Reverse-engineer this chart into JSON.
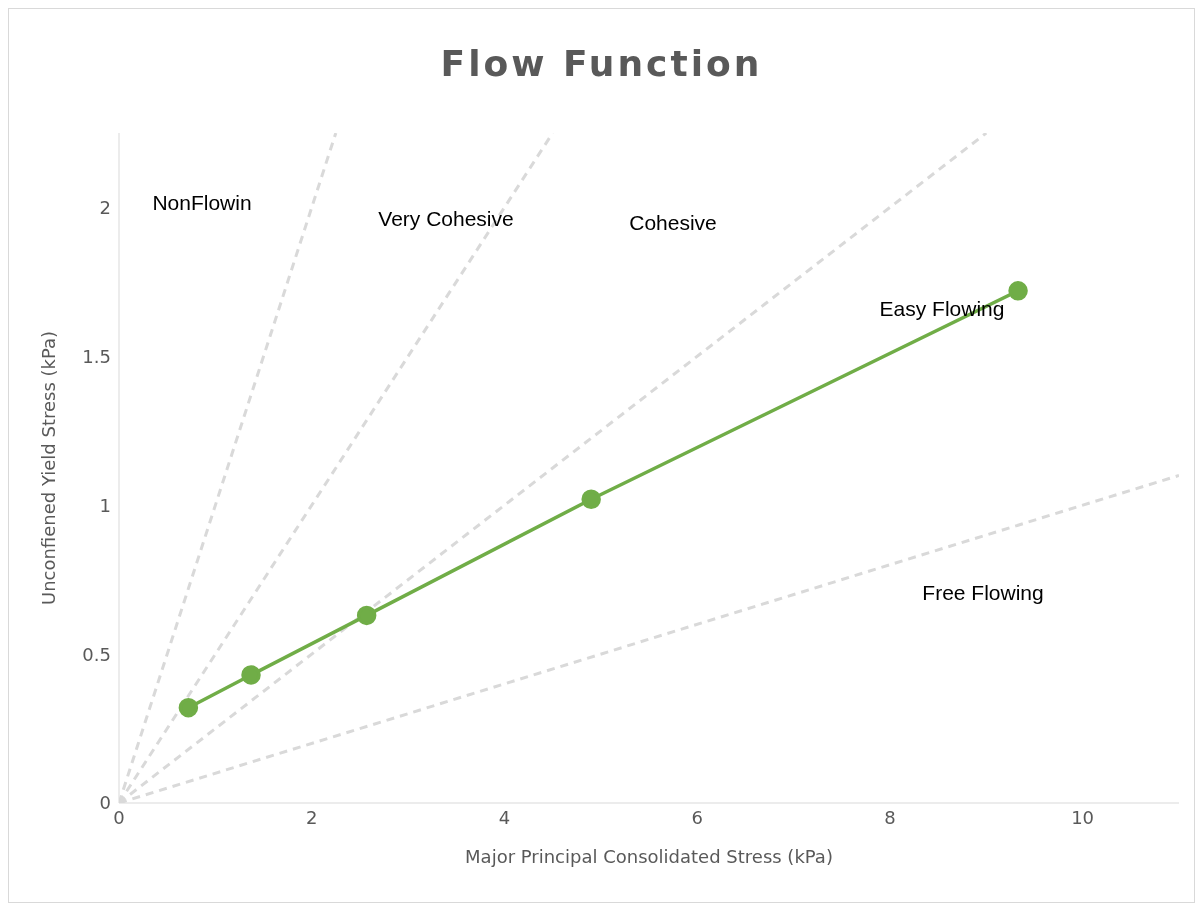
{
  "chart_data": {
    "type": "line",
    "title": "Flow Function",
    "xlabel": "Major Principal Consolidated Stress (kPa)",
    "ylabel": "Unconfiened Yield Stress (kPa)",
    "xlim": [
      0,
      11
    ],
    "xticks": [
      0,
      2,
      4,
      6,
      8,
      10
    ],
    "ylim": [
      0,
      2.25
    ],
    "yticks": [
      0,
      {
        "value": 0.5,
        "label": "0.5"
      },
      1,
      {
        "value": 1.5,
        "label": "1.5"
      },
      2
    ],
    "grid": false,
    "series": [
      {
        "color": "#d9d9d9",
        "line_style": "dashed",
        "marker": "none",
        "x": [
          0,
          2.25
        ],
        "values": [
          0,
          2.25
        ]
      },
      {
        "color": "#d9d9d9",
        "line_style": "dashed",
        "marker": "none",
        "x": [
          0,
          4.5
        ],
        "values": [
          0,
          2.25
        ]
      },
      {
        "color": "#d9d9d9",
        "line_style": "dashed",
        "marker": "none",
        "x": [
          0,
          9
        ],
        "values": [
          0,
          2.25
        ]
      },
      {
        "color": "#d9d9d9",
        "line_style": "dashed",
        "marker": "none",
        "x": [
          0,
          11
        ],
        "values": [
          0,
          1.1
        ]
      },
      {
        "color": "#70ad47",
        "line_style": "solid",
        "marker": "circle",
        "x": [
          0.72,
          1.37,
          2.57,
          4.9,
          9.33
        ],
        "values": [
          0.32,
          0.43,
          0.63,
          1.02,
          1.72
        ]
      }
    ],
    "annotations": [
      "NonFlowin",
      "Very Cohesive",
      "Cohesive",
      "Easy Flowing",
      "Free Flowing"
    ]
  }
}
